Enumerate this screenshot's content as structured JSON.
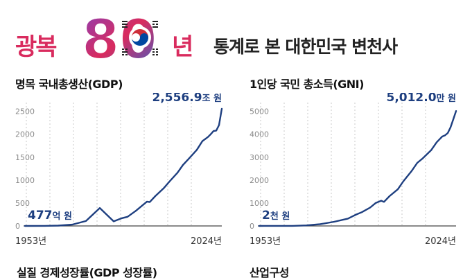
{
  "header": {
    "brand_part1": "광복",
    "brand_number": "80",
    "brand_part2": "년",
    "subtitle": "통계로 본 대한민국 변천사"
  },
  "chart_data": [
    {
      "type": "line",
      "title": "명목 국내총생산(GDP)",
      "x_start_label": "1953년",
      "x_end_label": "2024년",
      "yticks": [
        "0",
        "500",
        "1000",
        "1500",
        "2000",
        "2500"
      ],
      "ylim": [
        0,
        2600
      ],
      "grid": "vertical dashed",
      "x": [
        1953,
        1960,
        1965,
        1970,
        1975,
        1980,
        1985,
        1988,
        1990,
        1993,
        1995,
        1997,
        1998,
        2000,
        2003,
        2005,
        2008,
        2010,
        2012,
        2015,
        2017,
        2019,
        2020,
        2021,
        2022,
        2023,
        2024
      ],
      "values": [
        0.05,
        1.6,
        8.2,
        28,
        108,
        391.0,
        100,
        170,
        200,
        330,
        430,
        530,
        520,
        650,
        820,
        960,
        1160,
        1330,
        1460,
        1660,
        1850,
        1940,
        2000,
        2070,
        2080,
        2200,
        2556.9
      ],
      "start_annotation": {
        "number": "477",
        "unit": "억 원"
      },
      "end_annotation": {
        "number": "2,556.9",
        "unit": "조 원"
      }
    },
    {
      "type": "line",
      "title": "1인당 국민 총소득(GNI)",
      "x_start_label": "1953년",
      "x_end_label": "2024년",
      "yticks": [
        "0",
        "1000",
        "2000",
        "3000",
        "4000",
        "5000"
      ],
      "ylim": [
        0,
        5200
      ],
      "grid": "vertical dashed",
      "x": [
        1953,
        1960,
        1965,
        1970,
        1975,
        1980,
        1985,
        1988,
        1990,
        1993,
        1995,
        1997,
        1998,
        2000,
        2003,
        2005,
        2008,
        2010,
        2012,
        2015,
        2017,
        2019,
        2020,
        2021,
        2022,
        2023,
        2024
      ],
      "values": [
        0.2,
        2,
        4,
        25,
        80,
        180,
        320,
        500,
        600,
        800,
        1000,
        1100,
        1050,
        1300,
        1600,
        1950,
        2400,
        2750,
        2950,
        3300,
        3650,
        3900,
        3950,
        4050,
        4300,
        4650,
        5012.0
      ],
      "start_annotation": {
        "number": "2",
        "unit": "천 원"
      },
      "end_annotation": {
        "number": "5,012.0",
        "unit": "만 원"
      }
    }
  ],
  "bottom_titles": [
    "실질 경제성장률(GDP 성장률)",
    "산업구성"
  ]
}
